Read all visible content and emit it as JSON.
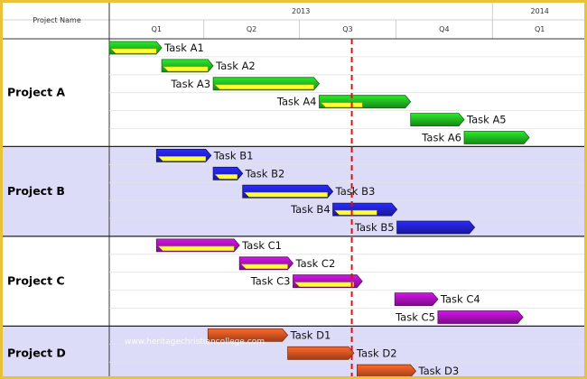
{
  "header": {
    "column_title": "Project Name",
    "years": [
      "2013",
      "2014"
    ],
    "quarters": [
      "Q1",
      "Q2",
      "Q3",
      "Q4",
      "Q1"
    ]
  },
  "watermark": "www.heritagechristiancollege.com",
  "colors": {
    "group_band_a": "#ffffff",
    "group_band_b": "#dcdcf8",
    "today_line": "#dd1111",
    "progress": "#ffff33",
    "project_a": "#22bb22",
    "project_b": "#2222cc",
    "project_c": "#aa11bb",
    "project_d": "#dd5522"
  },
  "chart_data": {
    "type": "gantt",
    "time_axis": {
      "start": "2013-01-01",
      "end": "2014-03-31",
      "unit": "quarter"
    },
    "today_marker": "2013-08-20",
    "projects": [
      {
        "name": "Project A",
        "color": "#22bb22",
        "tasks": [
          {
            "name": "Task A1",
            "start": "2013-01-01",
            "end": "2013-02-20",
            "progress": 1.0,
            "label_side": "right"
          },
          {
            "name": "Task A2",
            "start": "2013-02-20",
            "end": "2013-04-10",
            "progress": 1.0,
            "label_side": "right"
          },
          {
            "name": "Task A3",
            "start": "2013-04-10",
            "end": "2013-07-20",
            "progress": 1.0,
            "label_side": "left"
          },
          {
            "name": "Task A4",
            "start": "2013-07-20",
            "end": "2013-10-15",
            "progress": 0.5,
            "label_side": "left"
          },
          {
            "name": "Task A5",
            "start": "2013-10-15",
            "end": "2013-12-05",
            "progress": 0.0,
            "label_side": "right"
          },
          {
            "name": "Task A6",
            "start": "2013-12-05",
            "end": "2014-02-05",
            "progress": 0.0,
            "label_side": "left"
          }
        ]
      },
      {
        "name": "Project B",
        "color": "#2222cc",
        "tasks": [
          {
            "name": "Task B1",
            "start": "2013-02-15",
            "end": "2013-04-08",
            "progress": 1.0,
            "label_side": "right"
          },
          {
            "name": "Task B2",
            "start": "2013-04-10",
            "end": "2013-05-08",
            "progress": 1.0,
            "label_side": "right"
          },
          {
            "name": "Task B3",
            "start": "2013-05-08",
            "end": "2013-08-02",
            "progress": 1.0,
            "label_side": "right"
          },
          {
            "name": "Task B4",
            "start": "2013-08-02",
            "end": "2013-10-02",
            "progress": 0.75,
            "label_side": "left"
          },
          {
            "name": "Task B5",
            "start": "2013-10-02",
            "end": "2013-12-15",
            "progress": 0.0,
            "label_side": "left"
          }
        ]
      },
      {
        "name": "Project C",
        "color": "#aa11bb",
        "tasks": [
          {
            "name": "Task C1",
            "start": "2013-02-15",
            "end": "2013-05-05",
            "progress": 1.0,
            "label_side": "right"
          },
          {
            "name": "Task C2",
            "start": "2013-05-05",
            "end": "2013-06-25",
            "progress": 1.0,
            "label_side": "right"
          },
          {
            "name": "Task C3",
            "start": "2013-06-25",
            "end": "2013-08-30",
            "progress": 0.95,
            "label_side": "left"
          },
          {
            "name": "Task C4",
            "start": "2013-09-30",
            "end": "2013-11-10",
            "progress": 0.0,
            "label_side": "right"
          },
          {
            "name": "Task C5",
            "start": "2013-11-10",
            "end": "2014-01-30",
            "progress": 0.0,
            "label_side": "left"
          }
        ]
      },
      {
        "name": "Project D",
        "color": "#dd5522",
        "tasks": [
          {
            "name": "Task D1",
            "start": "2013-04-05",
            "end": "2013-06-20",
            "progress": 0.0,
            "label_side": "right"
          },
          {
            "name": "Task D2",
            "start": "2013-06-20",
            "end": "2013-08-22",
            "progress": 0.0,
            "label_side": "right"
          },
          {
            "name": "Task D3",
            "start": "2013-08-25",
            "end": "2013-10-20",
            "progress": 0.0,
            "label_side": "right"
          }
        ]
      }
    ]
  }
}
